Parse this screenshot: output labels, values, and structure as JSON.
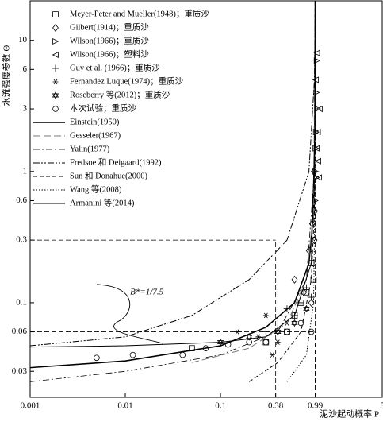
{
  "chart_data": {
    "type": "scatter",
    "x_label": "泥沙起动概率 P",
    "y_label": "水流强度参数 Θ",
    "xscale": "log",
    "yscale": "log",
    "xlim": [
      0.001,
      5
    ],
    "ylim": [
      0.019,
      20
    ],
    "xticks": [
      0.001,
      0.01,
      0.1,
      0.38,
      0.99,
      5
    ],
    "yticks": [
      0.03,
      0.06,
      0.1,
      0.3,
      0.6,
      1,
      3,
      6,
      10
    ],
    "guides": [
      {
        "x": 0.38,
        "y": 0.3
      },
      {
        "x": 0.99,
        "y": 0.06
      },
      {
        "x": 0.99,
        "y": 20
      }
    ],
    "annotation": {
      "text": "B*=1/7.5",
      "x": 0.02,
      "y": 0.12
    },
    "series": [
      {
        "name": "Meyer-Peter and Mueller(1948)；重质沙",
        "color": "#000000",
        "marker": "square",
        "x": [
          0.05,
          0.3,
          0.5,
          0.6,
          0.7,
          0.8,
          0.9,
          0.95
        ],
        "values": [
          0.045,
          0.05,
          0.06,
          0.08,
          0.1,
          0.12,
          0.2,
          0.15
        ]
      },
      {
        "name": "Gilbert(1914)；重质沙",
        "color": "#000000",
        "marker": "diamond",
        "x": [
          0.6,
          0.75,
          0.85,
          0.9,
          0.92,
          0.95,
          0.96,
          0.97,
          0.98
        ],
        "values": [
          0.15,
          0.12,
          0.25,
          0.1,
          0.4,
          0.2,
          1,
          0.3,
          0.5
        ]
      },
      {
        "name": "Wilson(1966)；重质沙",
        "color": "#000000",
        "marker": "tri-right",
        "x": [
          0.99,
          1.0,
          1.0,
          1.01,
          1.02,
          1.02,
          1.03,
          1.05
        ],
        "values": [
          0.6,
          1,
          1.5,
          2,
          4,
          0.9,
          7,
          3
        ]
      },
      {
        "name": "Wilson(1966)；塑料沙",
        "color": "#000000",
        "marker": "tri-left",
        "x": [
          1.0,
          1.02,
          1.03,
          1.05,
          1.06,
          1.08,
          1.1
        ],
        "values": [
          5,
          1.5,
          8,
          2,
          1.2,
          0.9,
          3
        ]
      },
      {
        "name": "Guy et al. (1966)；重质沙",
        "color": "#000000",
        "marker": "plus",
        "x": [
          0.3,
          0.4,
          0.5,
          0.6,
          0.7,
          0.8,
          0.9
        ],
        "values": [
          0.06,
          0.07,
          0.09,
          0.08,
          0.1,
          0.13,
          0.11
        ]
      },
      {
        "name": "Fernandez Luque(1974)；重质沙",
        "color": "#000000",
        "marker": "asterisk",
        "x": [
          0.15,
          0.25,
          0.3,
          0.35,
          0.4,
          0.5
        ],
        "values": [
          0.06,
          0.055,
          0.08,
          0.04,
          0.05,
          0.07
        ]
      },
      {
        "name": "Roseberry 等(2012)；重质沙",
        "color": "#000000",
        "marker": "star",
        "x": [
          0.1,
          0.2,
          0.4,
          0.6,
          0.8
        ],
        "values": [
          0.05,
          0.055,
          0.06,
          0.07,
          0.09
        ]
      },
      {
        "name": "本次试验；重质沙",
        "color": "#000000",
        "marker": "circle",
        "x": [
          0.005,
          0.012,
          0.04,
          0.07,
          0.12,
          0.2,
          0.3,
          0.5,
          0.7,
          0.9
        ],
        "values": [
          0.038,
          0.04,
          0.04,
          0.045,
          0.048,
          0.05,
          0.05,
          0.06,
          0.07,
          0.06
        ]
      },
      {
        "name": "Einstein(1950)",
        "color": "#000000",
        "dash": "solid-thick",
        "x": [
          0.001,
          0.01,
          0.1,
          0.3,
          0.6,
          0.85,
          0.95,
          0.98,
          0.99
        ],
        "values": [
          0.032,
          0.036,
          0.047,
          0.065,
          0.1,
          0.2,
          0.5,
          2,
          20
        ]
      },
      {
        "name": "Gesseler(1967)",
        "color": "#777777",
        "dash": "long",
        "x": [
          0.05,
          0.2,
          0.5,
          0.8,
          0.95,
          0.99
        ],
        "values": [
          0.035,
          0.045,
          0.07,
          0.15,
          0.5,
          20
        ]
      },
      {
        "name": "Yalin(1977)",
        "color": "#000000",
        "dash": "dash-dot",
        "x": [
          0.001,
          0.01,
          0.1,
          0.4,
          0.8,
          0.97,
          0.99
        ],
        "values": [
          0.025,
          0.03,
          0.04,
          0.06,
          0.15,
          1,
          20
        ]
      },
      {
        "name": "Fredsoe 和 Deigaard(1992)",
        "color": "#000000",
        "dash": "dash-dot-dot",
        "x": [
          0.001,
          0.01,
          0.05,
          0.2,
          0.5,
          0.85,
          0.97,
          0.99
        ],
        "values": [
          0.047,
          0.055,
          0.08,
          0.15,
          0.3,
          1,
          5,
          20
        ]
      },
      {
        "name": "Sun 和 Donahue(2000)",
        "color": "#000000",
        "dash": "dashed",
        "x": [
          0.2,
          0.4,
          0.7,
          0.9,
          0.97,
          0.985
        ],
        "values": [
          0.025,
          0.035,
          0.06,
          0.15,
          0.5,
          20
        ]
      },
      {
        "name": "Wang 等(2008)",
        "color": "#000000",
        "dash": "dotted",
        "x": [
          0.5,
          0.8,
          0.95,
          0.98,
          0.99
        ],
        "values": [
          0.025,
          0.04,
          0.1,
          0.5,
          20
        ]
      },
      {
        "name": "Armanini 等(2014)",
        "color": "#000000",
        "dash": "solid",
        "x": [
          0.001,
          0.01,
          0.1,
          0.3,
          0.6,
          0.9,
          0.98,
          0.995
        ],
        "values": [
          0.046,
          0.047,
          0.05,
          0.055,
          0.08,
          0.2,
          2,
          20
        ]
      }
    ]
  }
}
